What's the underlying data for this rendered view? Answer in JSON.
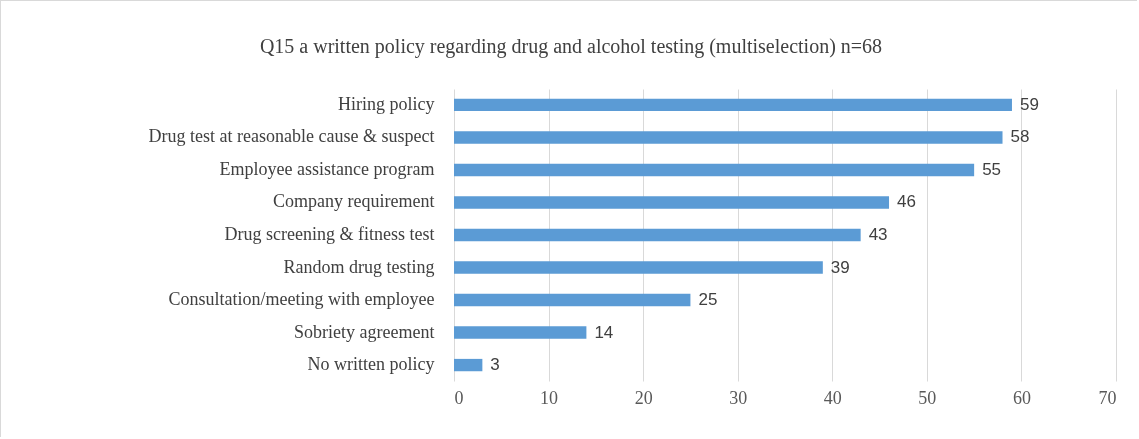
{
  "chart_data": {
    "type": "bar",
    "orientation": "horizontal",
    "title": "Q15 a written policy regarding drug and alcohol testing (multiselection) n=68",
    "categories": [
      "Hiring policy",
      "Drug test at reasonable cause & suspect",
      "Employee assistance program",
      "Company requirement",
      "Drug screening & fitness test",
      "Random drug testing",
      "Consultation/meeting with employee",
      "Sobriety agreement",
      "No written policy"
    ],
    "values": [
      59,
      58,
      55,
      46,
      43,
      39,
      25,
      14,
      3
    ],
    "color": "#5b9bd5",
    "xlim": [
      0,
      70
    ],
    "xticks": [
      0,
      10,
      20,
      30,
      40,
      50,
      60,
      70
    ],
    "grid": "x",
    "data_labels": true
  }
}
